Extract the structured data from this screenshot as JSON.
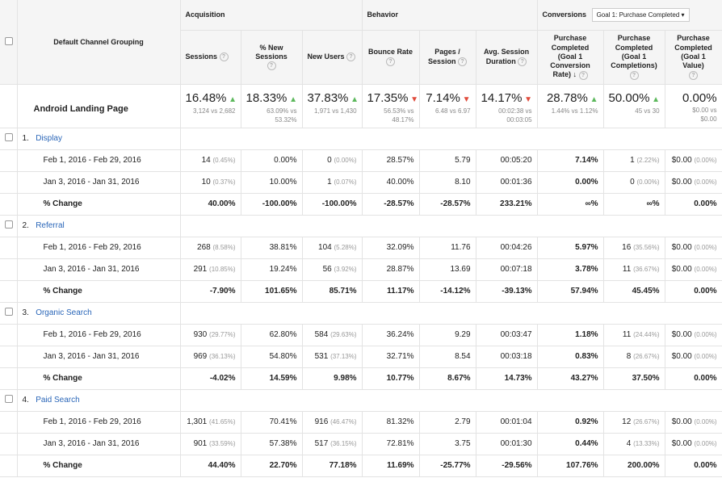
{
  "header": {
    "dimension": "Default Channel Grouping",
    "acquisition": "Acquisition",
    "behavior": "Behavior",
    "conversions": "Conversions",
    "goal_select": "Goal 1: Purchase Completed",
    "columns": [
      "Sessions",
      "% New Sessions",
      "New Users",
      "Bounce Rate",
      "Pages / Session",
      "Avg. Session Duration",
      "Purchase Completed (Goal 1 Conversion Rate)",
      "Purchase Completed (Goal 1 Completions)",
      "Purchase Completed (Goal 1 Value)"
    ]
  },
  "totals": {
    "label": "Android Landing Page",
    "cells": [
      {
        "v": "16.48%",
        "dir": "up",
        "s1": "3,124 vs 2,682",
        "s2": ""
      },
      {
        "v": "18.33%",
        "dir": "up",
        "s1": "63.09% vs",
        "s2": "53.32%"
      },
      {
        "v": "37.83%",
        "dir": "up",
        "s1": "1,971 vs 1,430",
        "s2": ""
      },
      {
        "v": "17.35%",
        "dir": "down",
        "s1": "56.53% vs",
        "s2": "48.17%"
      },
      {
        "v": "7.14%",
        "dir": "down",
        "s1": "6.48 vs 6.97",
        "s2": ""
      },
      {
        "v": "14.17%",
        "dir": "down",
        "s1": "00:02:38 vs",
        "s2": "00:03:05"
      },
      {
        "v": "28.78%",
        "dir": "up",
        "s1": "1.44% vs 1.12%",
        "s2": ""
      },
      {
        "v": "50.00%",
        "dir": "up",
        "s1": "45 vs 30",
        "s2": ""
      },
      {
        "v": "0.00%",
        "dir": "",
        "s1": "$0.00 vs",
        "s2": "$0.00"
      }
    ]
  },
  "channels": [
    {
      "num": "1.",
      "name": "Display",
      "rows": [
        {
          "label": "Feb 1, 2016 - Feb 29, 2016",
          "c": [
            "14",
            "(0.45%)",
            "0.00%",
            "0",
            "(0.00%)",
            "28.57%",
            "5.79",
            "00:05:20",
            "7.14%",
            "1",
            "(2.22%)",
            "$0.00",
            "(0.00%)"
          ]
        },
        {
          "label": "Jan 3, 2016 - Jan 31, 2016",
          "c": [
            "10",
            "(0.37%)",
            "10.00%",
            "1",
            "(0.07%)",
            "40.00%",
            "8.10",
            "00:01:36",
            "0.00%",
            "0",
            "(0.00%)",
            "$0.00",
            "(0.00%)"
          ]
        },
        {
          "label": "% Change",
          "c": [
            "40.00%",
            "",
            "-100.00%",
            "-100.00%",
            "",
            "-28.57%",
            "-28.57%",
            "233.21%",
            "∞%",
            "∞%",
            "",
            "0.00%",
            ""
          ]
        }
      ]
    },
    {
      "num": "2.",
      "name": "Referral",
      "rows": [
        {
          "label": "Feb 1, 2016 - Feb 29, 2016",
          "c": [
            "268",
            "(8.58%)",
            "38.81%",
            "104",
            "(5.28%)",
            "32.09%",
            "11.76",
            "00:04:26",
            "5.97%",
            "16",
            "(35.56%)",
            "$0.00",
            "(0.00%)"
          ]
        },
        {
          "label": "Jan 3, 2016 - Jan 31, 2016",
          "c": [
            "291",
            "(10.85%)",
            "19.24%",
            "56",
            "(3.92%)",
            "28.87%",
            "13.69",
            "00:07:18",
            "3.78%",
            "11",
            "(36.67%)",
            "$0.00",
            "(0.00%)"
          ]
        },
        {
          "label": "% Change",
          "c": [
            "-7.90%",
            "",
            "101.65%",
            "85.71%",
            "",
            "11.17%",
            "-14.12%",
            "-39.13%",
            "57.94%",
            "45.45%",
            "",
            "0.00%",
            ""
          ]
        }
      ]
    },
    {
      "num": "3.",
      "name": "Organic Search",
      "rows": [
        {
          "label": "Feb 1, 2016 - Feb 29, 2016",
          "c": [
            "930",
            "(29.77%)",
            "62.80%",
            "584",
            "(29.63%)",
            "36.24%",
            "9.29",
            "00:03:47",
            "1.18%",
            "11",
            "(24.44%)",
            "$0.00",
            "(0.00%)"
          ]
        },
        {
          "label": "Jan 3, 2016 - Jan 31, 2016",
          "c": [
            "969",
            "(36.13%)",
            "54.80%",
            "531",
            "(37.13%)",
            "32.71%",
            "8.54",
            "00:03:18",
            "0.83%",
            "8",
            "(26.67%)",
            "$0.00",
            "(0.00%)"
          ]
        },
        {
          "label": "% Change",
          "c": [
            "-4.02%",
            "",
            "14.59%",
            "9.98%",
            "",
            "10.77%",
            "8.67%",
            "14.73%",
            "43.27%",
            "37.50%",
            "",
            "0.00%",
            ""
          ]
        }
      ]
    },
    {
      "num": "4.",
      "name": "Paid Search",
      "rows": [
        {
          "label": "Feb 1, 2016 - Feb 29, 2016",
          "c": [
            "1,301",
            "(41.65%)",
            "70.41%",
            "916",
            "(46.47%)",
            "81.32%",
            "2.79",
            "00:01:04",
            "0.92%",
            "12",
            "(26.67%)",
            "$0.00",
            "(0.00%)"
          ]
        },
        {
          "label": "Jan 3, 2016 - Jan 31, 2016",
          "c": [
            "901",
            "(33.59%)",
            "57.38%",
            "517",
            "(36.15%)",
            "72.81%",
            "3.75",
            "00:01:30",
            "0.44%",
            "4",
            "(13.33%)",
            "$0.00",
            "(0.00%)"
          ]
        },
        {
          "label": "% Change",
          "c": [
            "44.40%",
            "",
            "22.70%",
            "77.18%",
            "",
            "11.69%",
            "-25.77%",
            "-29.56%",
            "107.76%",
            "200.00%",
            "",
            "0.00%",
            ""
          ]
        }
      ]
    }
  ]
}
